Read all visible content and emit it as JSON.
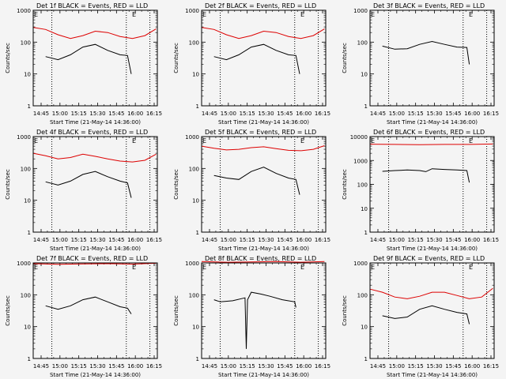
{
  "figure": {
    "background": "#f4f4f4",
    "events_color": "#000000",
    "lld_color": "#dd0000"
  },
  "chart_data": [
    {
      "type": "line",
      "title": "Det 1f BLACK = Events, RED = LLD",
      "xlabel": "Start Time (21-May-14 14:36:00)",
      "ylabel": "Counts/sec",
      "yscale": "log",
      "ylim": [
        1,
        1000
      ],
      "xlim": [
        0,
        100
      ],
      "xticks": [
        "14:45",
        "15:00",
        "15:15",
        "15:30",
        "15:45",
        "16:00",
        "16:15"
      ],
      "yticks": [
        "1",
        "10",
        "100",
        "1000"
      ],
      "markers": [
        {
          "label": "E",
          "x": 0
        },
        {
          "label": "E",
          "x": 79
        }
      ],
      "vlines": [
        15,
        75,
        94
      ],
      "series": [
        {
          "name": "Events",
          "color": "#000000",
          "x": [
            10,
            20,
            30,
            40,
            50,
            60,
            70,
            76,
            79
          ],
          "y": [
            35,
            28,
            40,
            70,
            85,
            55,
            40,
            38,
            10
          ]
        },
        {
          "name": "LLD",
          "color": "#dd0000",
          "x": [
            0,
            10,
            20,
            30,
            40,
            50,
            60,
            70,
            80,
            90,
            99
          ],
          "y": [
            290,
            250,
            170,
            130,
            160,
            220,
            200,
            150,
            130,
            160,
            260
          ]
        }
      ]
    },
    {
      "type": "line",
      "title": "Det 2f BLACK = Events, RED = LLD",
      "xlabel": "Start Time (21-May-14 14:36:00)",
      "ylabel": "Counts/sec",
      "yscale": "log",
      "ylim": [
        1,
        1000
      ],
      "xlim": [
        0,
        100
      ],
      "xticks": [
        "14:45",
        "15:00",
        "15:15",
        "15:30",
        "15:45",
        "16:00",
        "16:15"
      ],
      "yticks": [
        "1",
        "10",
        "100",
        "1000"
      ],
      "markers": [
        {
          "label": "E",
          "x": 0
        },
        {
          "label": "E",
          "x": 79
        }
      ],
      "vlines": [
        15,
        75,
        94
      ],
      "series": [
        {
          "name": "Events",
          "color": "#000000",
          "x": [
            10,
            20,
            30,
            40,
            50,
            60,
            70,
            76,
            79
          ],
          "y": [
            35,
            28,
            40,
            70,
            85,
            55,
            40,
            38,
            10
          ]
        },
        {
          "name": "LLD",
          "color": "#dd0000",
          "x": [
            0,
            10,
            20,
            30,
            40,
            50,
            60,
            70,
            80,
            90,
            99
          ],
          "y": [
            290,
            250,
            170,
            130,
            160,
            220,
            200,
            150,
            130,
            160,
            260
          ]
        }
      ]
    },
    {
      "type": "line",
      "title": "Det 3f BLACK = Events, RED = LLD",
      "xlabel": "Start Time (21-May-14 14:36:00)",
      "ylabel": "Counts/sec",
      "yscale": "log",
      "ylim": [
        1,
        1000
      ],
      "xlim": [
        0,
        100
      ],
      "xticks": [
        "14:45",
        "15:00",
        "15:15",
        "15:30",
        "15:45",
        "16:00",
        "16:15"
      ],
      "yticks": [
        "1",
        "10",
        "100",
        "1000"
      ],
      "markers": [
        {
          "label": "E",
          "x": 0
        },
        {
          "label": "E",
          "x": 79
        }
      ],
      "vlines": [
        15,
        75,
        94
      ],
      "series": [
        {
          "name": "Events",
          "color": "#000000",
          "x": [
            10,
            20,
            30,
            40,
            50,
            60,
            70,
            78,
            80
          ],
          "y": [
            75,
            60,
            62,
            85,
            105,
            85,
            70,
            68,
            20
          ]
        }
      ]
    },
    {
      "type": "line",
      "title": "Det 4f BLACK = Events, RED = LLD",
      "xlabel": "Start Time (21-May-14 14:36:00)",
      "ylabel": "Counts/sec",
      "yscale": "log",
      "ylim": [
        1,
        1000
      ],
      "xlim": [
        0,
        100
      ],
      "xticks": [
        "14:45",
        "15:00",
        "15:15",
        "15:30",
        "15:45",
        "16:00",
        "16:15"
      ],
      "yticks": [
        "1",
        "10",
        "100",
        "1000"
      ],
      "markers": [
        {
          "label": "E",
          "x": 0
        },
        {
          "label": "E",
          "x": 79
        }
      ],
      "vlines": [
        15,
        75,
        94
      ],
      "series": [
        {
          "name": "Events",
          "color": "#000000",
          "x": [
            10,
            20,
            30,
            40,
            50,
            60,
            70,
            76,
            79
          ],
          "y": [
            38,
            30,
            40,
            65,
            80,
            55,
            40,
            35,
            12
          ]
        },
        {
          "name": "LLD",
          "color": "#dd0000",
          "x": [
            0,
            10,
            20,
            30,
            40,
            50,
            60,
            70,
            80,
            90,
            99
          ],
          "y": [
            300,
            250,
            200,
            220,
            280,
            240,
            200,
            170,
            160,
            180,
            280
          ]
        }
      ]
    },
    {
      "type": "line",
      "title": "Det 5f BLACK = Events, RED = LLD",
      "xlabel": "Start Time (21-May-14 14:36:00)",
      "ylabel": "Counts/sec",
      "yscale": "log",
      "ylim": [
        1,
        1000
      ],
      "xlim": [
        0,
        100
      ],
      "xticks": [
        "14:45",
        "15:00",
        "15:15",
        "15:30",
        "15:45",
        "16:00",
        "16:15"
      ],
      "yticks": [
        "1",
        "10",
        "100",
        "1000"
      ],
      "markers": [
        {
          "label": "E",
          "x": 0
        },
        {
          "label": "E",
          "x": 79
        }
      ],
      "vlines": [
        15,
        75,
        94
      ],
      "series": [
        {
          "name": "Events",
          "color": "#000000",
          "x": [
            10,
            20,
            30,
            40,
            50,
            60,
            70,
            76,
            79
          ],
          "y": [
            60,
            50,
            45,
            80,
            110,
            70,
            50,
            45,
            15
          ]
        },
        {
          "name": "LLD",
          "color": "#dd0000",
          "x": [
            0,
            10,
            20,
            30,
            40,
            50,
            60,
            70,
            80,
            90,
            99
          ],
          "y": [
            500,
            430,
            380,
            400,
            450,
            480,
            420,
            370,
            360,
            400,
            520
          ]
        }
      ]
    },
    {
      "type": "line",
      "title": "Det 6f BLACK = Events, RED = LLD",
      "xlabel": "Start Time (21-May-14 14:36:00)",
      "ylabel": "Counts/sec",
      "yscale": "log",
      "ylim": [
        1,
        10000
      ],
      "xlim": [
        0,
        100
      ],
      "xticks": [
        "14:45",
        "15:00",
        "15:15",
        "15:30",
        "15:45",
        "16:00",
        "16:15"
      ],
      "yticks": [
        "1",
        "10",
        "100",
        "1000",
        "10000"
      ],
      "markers": [
        {
          "label": "E",
          "x": 0
        },
        {
          "label": "E",
          "x": 79
        }
      ],
      "vlines": [
        15,
        75,
        94
      ],
      "series": [
        {
          "name": "Events",
          "color": "#000000",
          "x": [
            10,
            20,
            30,
            40,
            45,
            50,
            60,
            70,
            78,
            80
          ],
          "y": [
            350,
            380,
            400,
            380,
            340,
            450,
            420,
            400,
            380,
            120
          ]
        },
        {
          "name": "LLD",
          "color": "#dd0000",
          "x": [
            0,
            20,
            40,
            60,
            80,
            99
          ],
          "y": [
            4800,
            4700,
            4600,
            4700,
            4700,
            4900
          ]
        }
      ]
    },
    {
      "type": "line",
      "title": "Det 7f BLACK = Events, RED = LLD",
      "xlabel": "Start Time (21-May-14 14:36:00)",
      "ylabel": "Counts/sec",
      "yscale": "log",
      "ylim": [
        1,
        1000
      ],
      "xlim": [
        0,
        100
      ],
      "xticks": [
        "14:45",
        "15:00",
        "15:15",
        "15:30",
        "15:45",
        "16:00",
        "16:15"
      ],
      "yticks": [
        "1",
        "10",
        "100",
        "1000"
      ],
      "markers": [
        {
          "label": "E",
          "x": 0
        },
        {
          "label": "E",
          "x": 79
        }
      ],
      "vlines": [
        15,
        75,
        94
      ],
      "series": [
        {
          "name": "Events",
          "color": "#000000",
          "x": [
            10,
            20,
            30,
            40,
            50,
            60,
            70,
            76,
            79
          ],
          "y": [
            45,
            35,
            45,
            70,
            85,
            60,
            42,
            38,
            25
          ]
        },
        {
          "name": "LLD",
          "color": "#dd0000",
          "x": [
            0,
            20,
            40,
            60,
            80,
            99
          ],
          "y": [
            950,
            900,
            930,
            950,
            920,
            980
          ]
        }
      ]
    },
    {
      "type": "line",
      "title": "Det 8f BLACK = Events, RED = LLD",
      "xlabel": "Start Time (21-May-14 14:36:00)",
      "ylabel": "Counts/sec",
      "yscale": "log",
      "ylim": [
        1,
        1000
      ],
      "xlim": [
        0,
        100
      ],
      "xticks": [
        "14:45",
        "15:00",
        "15:15",
        "15:30",
        "15:45",
        "16:00",
        "16:15"
      ],
      "yticks": [
        "1",
        "10",
        "100",
        "1000"
      ],
      "markers": [
        {
          "label": "E",
          "x": 0
        },
        {
          "label": "E",
          "x": 79
        }
      ],
      "vlines": [
        15,
        75,
        94
      ],
      "series": [
        {
          "name": "Events",
          "color": "#000000",
          "x": [
            10,
            15,
            25,
            35,
            36,
            37,
            40,
            48,
            55,
            65,
            75,
            76
          ],
          "y": [
            70,
            60,
            65,
            80,
            2,
            70,
            120,
            105,
            90,
            70,
            60,
            40
          ]
        },
        {
          "name": "LLD",
          "color": "#dd0000",
          "x": [
            0,
            20,
            40,
            60,
            80,
            99
          ],
          "y": [
            1100,
            1050,
            1080,
            1100,
            1050,
            1100
          ]
        }
      ]
    },
    {
      "type": "line",
      "title": "Det 9f BLACK = Events, RED = LLD",
      "xlabel": "Start Time (21-May-14 14:36:00)",
      "ylabel": "Counts/sec",
      "yscale": "log",
      "ylim": [
        1,
        1000
      ],
      "xlim": [
        0,
        100
      ],
      "xticks": [
        "14:45",
        "15:00",
        "15:15",
        "15:30",
        "15:45",
        "16:00",
        "16:15"
      ],
      "yticks": [
        "1",
        "10",
        "100",
        "1000"
      ],
      "markers": [
        {
          "label": "E",
          "x": 0
        },
        {
          "label": "E",
          "x": 79
        }
      ],
      "vlines": [
        15,
        75,
        94
      ],
      "series": [
        {
          "name": "Events",
          "color": "#000000",
          "x": [
            10,
            20,
            30,
            40,
            50,
            60,
            70,
            78,
            80
          ],
          "y": [
            22,
            18,
            20,
            35,
            45,
            35,
            28,
            25,
            12
          ]
        },
        {
          "name": "LLD",
          "color": "#dd0000",
          "x": [
            0,
            10,
            20,
            30,
            40,
            50,
            60,
            70,
            80,
            90,
            99
          ],
          "y": [
            150,
            120,
            85,
            75,
            90,
            120,
            120,
            95,
            75,
            85,
            160
          ]
        }
      ]
    }
  ]
}
